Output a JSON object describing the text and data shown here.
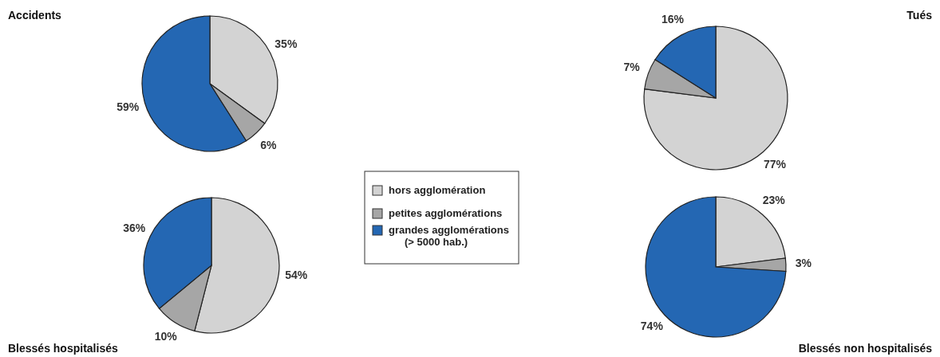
{
  "chart_data": [
    {
      "type": "pie",
      "title": "Accidents",
      "categories": [
        "hors agglomération",
        "petites agglomérations",
        "grandes agglomérations (> 5000 hab.)"
      ],
      "values": [
        35,
        6,
        59
      ],
      "value_labels": [
        "35%",
        "6%",
        "59%"
      ],
      "colors": [
        "#d3d3d3",
        "#a6a6a6",
        "#2467b3"
      ],
      "legend": "right"
    },
    {
      "type": "pie",
      "title": "Tués",
      "values": [
        77,
        7,
        16
      ],
      "value_labels": [
        "77%",
        "7%",
        "16%"
      ],
      "colors": [
        "#d3d3d3",
        "#a6a6a6",
        "#2467b3"
      ]
    },
    {
      "type": "pie",
      "title": "Blessés hospitalisés",
      "values": [
        54,
        10,
        36
      ],
      "value_labels": [
        "54%",
        "10%",
        "36%"
      ],
      "colors": [
        "#d3d3d3",
        "#a6a6a6",
        "#2467b3"
      ]
    },
    {
      "type": "pie",
      "title": "Blessés non hospitalisés",
      "values": [
        23,
        3,
        74
      ],
      "value_labels": [
        "23%",
        "3%",
        "74%"
      ],
      "colors": [
        "#d3d3d3",
        "#a6a6a6",
        "#2467b3"
      ]
    }
  ]
}
